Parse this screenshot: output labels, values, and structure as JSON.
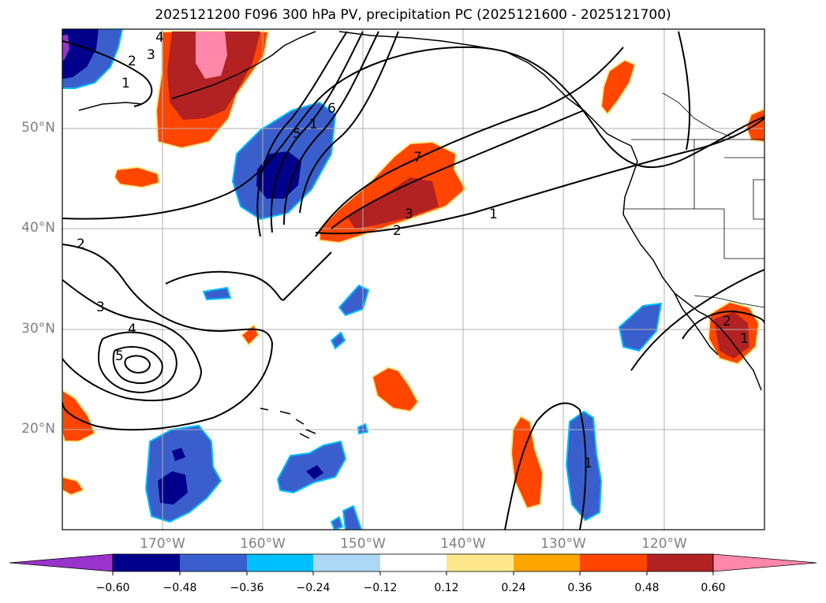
{
  "title": "2025121200 F096 300 hPa PV, precipitation PC (2025121600 - 2025121700)",
  "map": {
    "lat_labels": [
      "50°N",
      "40°N",
      "30°N",
      "20°N"
    ],
    "lon_labels": [
      "170°W",
      "160°W",
      "150°W",
      "140°W",
      "130°W",
      "120°W"
    ],
    "contour_labels": [
      "1",
      "2",
      "3",
      "4",
      "5",
      "6",
      "7",
      "2",
      "3",
      "1",
      "1",
      "2",
      "3",
      "4",
      "5",
      "1",
      "1",
      "2"
    ]
  },
  "colorbar": {
    "labels": [
      "−0.60",
      "−0.48",
      "−0.36",
      "−0.24",
      "−0.12",
      "0.12",
      "0.24",
      "0.36",
      "0.48",
      "0.60"
    ],
    "colors": [
      "#9933cc",
      "#00008b",
      "#3a5fcd",
      "#00bfff",
      "#add8f5",
      "#ffffff",
      "#ffe88c",
      "#ffa500",
      "#ff4500",
      "#b22222",
      "#ff88aa"
    ]
  },
  "colors": {
    "neg_strong": "#00008b",
    "neg_mid": "#3a5fcd",
    "neg_weak": "#00bfff",
    "pos_weak": "#ffe88c",
    "pos_mid": "#ff4500",
    "pos_strong": "#b22222",
    "pos_max": "#ff88aa"
  }
}
